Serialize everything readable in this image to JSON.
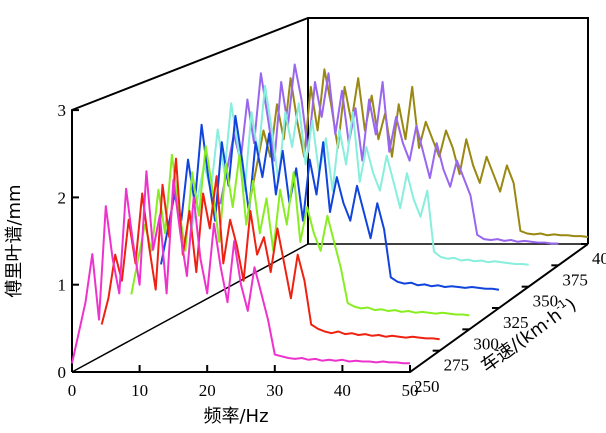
{
  "chart_data": {
    "type": "line",
    "chart_kind": "3d-waterfall",
    "xlabel": "频率/Hz",
    "ylabel": "傅里叶谱/mm",
    "zlabel": "车速/(km·h",
    "zlabel_sup": "-1",
    "zlabel_close": ")",
    "xlim": [
      0,
      50
    ],
    "ylim": [
      0,
      3
    ],
    "zlim": [
      250,
      400
    ],
    "x_ticks": [
      "0",
      "10",
      "20",
      "30",
      "40",
      "50"
    ],
    "y_ticks": [
      "0",
      "1",
      "2",
      "3"
    ],
    "z_ticks": [
      "250",
      "275",
      "300",
      "325",
      "350",
      "375",
      "400"
    ],
    "grid": false,
    "legend": "none",
    "series": [
      {
        "speed": 250,
        "color": "#ee33cc",
        "values": [
          0.1,
          0.45,
          0.8,
          1.35,
          0.6,
          1.9,
          1.3,
          0.9,
          2.1,
          1.5,
          1.0,
          2.3,
          1.4,
          1.8,
          0.9,
          2.2,
          1.6,
          1.1,
          2.0,
          1.3,
          0.9,
          1.7,
          1.2,
          0.8,
          1.5,
          1.0,
          0.7,
          1.2,
          0.9,
          0.6,
          0.2,
          0.18,
          0.16,
          0.15,
          0.16,
          0.14,
          0.15,
          0.13,
          0.14,
          0.13,
          0.14,
          0.12,
          0.13,
          0.12,
          0.12,
          0.11,
          0.12,
          0.11,
          0.11,
          0.1,
          0.1
        ]
      },
      {
        "speed": 275,
        "color": "#ee2211",
        "values": [
          0.3,
          0.6,
          1.1,
          0.8,
          1.5,
          1.0,
          1.8,
          1.2,
          0.7,
          1.9,
          1.3,
          2.2,
          1.1,
          1.6,
          0.9,
          1.8,
          1.4,
          2.0,
          1.0,
          1.5,
          1.2,
          0.8,
          1.6,
          1.1,
          1.3,
          0.9,
          1.4,
          1.0,
          0.6,
          1.1,
          0.8,
          0.3,
          0.25,
          0.22,
          0.2,
          0.22,
          0.19,
          0.2,
          0.18,
          0.19,
          0.17,
          0.18,
          0.16,
          0.17,
          0.16,
          0.15,
          0.16,
          0.15,
          0.14,
          0.14,
          0.13
        ]
      },
      {
        "speed": 300,
        "color": "#88ee22",
        "values": [
          0.4,
          0.8,
          1.2,
          0.9,
          1.6,
          1.1,
          2.0,
          1.4,
          0.9,
          1.8,
          1.3,
          2.1,
          1.6,
          1.0,
          1.9,
          1.4,
          2.0,
          1.2,
          1.7,
          1.1,
          1.5,
          0.9,
          1.6,
          1.2,
          1.8,
          1.0,
          1.4,
          1.1,
          0.9,
          1.3,
          1.0,
          0.7,
          0.3,
          0.26,
          0.24,
          0.25,
          0.22,
          0.23,
          0.21,
          0.22,
          0.2,
          0.21,
          0.19,
          0.2,
          0.19,
          0.18,
          0.19,
          0.18,
          0.17,
          0.17,
          0.16
        ]
      },
      {
        "speed": 325,
        "color": "#1144dd",
        "values": [
          0.5,
          0.9,
          1.3,
          1.0,
          1.7,
          1.2,
          2.1,
          1.5,
          1.0,
          1.9,
          1.4,
          2.2,
          1.7,
          1.1,
          1.9,
          1.5,
          2.0,
          1.3,
          1.8,
          1.2,
          1.6,
          1.0,
          1.7,
          1.3,
          1.9,
          1.1,
          1.5,
          1.2,
          1.0,
          1.4,
          1.1,
          0.8,
          1.2,
          0.9,
          0.35,
          0.3,
          0.28,
          0.29,
          0.26,
          0.27,
          0.25,
          0.26,
          0.24,
          0.25,
          0.24,
          0.23,
          0.24,
          0.23,
          0.22,
          0.22,
          0.21
        ]
      },
      {
        "speed": 350,
        "color": "#88eedd",
        "values": [
          0.6,
          1.0,
          1.4,
          1.1,
          1.8,
          1.3,
          2.1,
          1.6,
          1.1,
          2.0,
          1.5,
          2.3,
          1.8,
          1.2,
          2.0,
          1.6,
          2.1,
          1.4,
          1.9,
          1.3,
          1.7,
          1.1,
          1.8,
          1.4,
          2.0,
          1.2,
          1.6,
          1.3,
          1.1,
          1.5,
          1.2,
          0.9,
          1.3,
          1.0,
          0.8,
          1.1,
          0.4,
          0.34,
          0.32,
          0.33,
          0.3,
          0.31,
          0.29,
          0.3,
          0.28,
          0.29,
          0.28,
          0.27,
          0.26,
          0.26,
          0.25
        ]
      },
      {
        "speed": 375,
        "color": "#9966ee",
        "values": [
          0.7,
          1.1,
          1.5,
          1.2,
          1.9,
          1.4,
          2.2,
          1.7,
          1.2,
          2.1,
          1.6,
          2.3,
          1.9,
          1.3,
          2.1,
          1.7,
          2.2,
          1.5,
          2.0,
          1.4,
          1.8,
          1.2,
          1.9,
          1.5,
          2.1,
          1.3,
          1.7,
          1.4,
          1.2,
          1.6,
          1.3,
          1.0,
          1.4,
          1.1,
          0.9,
          1.2,
          1.0,
          0.8,
          0.35,
          0.3,
          0.29,
          0.3,
          0.28,
          0.29,
          0.27,
          0.28,
          0.27,
          0.26,
          0.26,
          0.25,
          0.25
        ]
      },
      {
        "speed": 400,
        "color": "#998811",
        "values": [
          0.5,
          0.9,
          1.3,
          1.0,
          1.6,
          1.2,
          1.9,
          1.4,
          1.0,
          1.8,
          1.3,
          2.0,
          1.6,
          1.1,
          1.8,
          1.4,
          1.9,
          1.3,
          1.7,
          1.2,
          1.5,
          1.0,
          1.6,
          1.2,
          1.8,
          1.1,
          1.4,
          1.2,
          1.0,
          1.3,
          1.1,
          0.8,
          1.2,
          0.9,
          0.7,
          1.0,
          0.8,
          0.6,
          0.9,
          0.7,
          0.15,
          0.12,
          0.11,
          0.12,
          0.1,
          0.11,
          0.1,
          0.1,
          0.09,
          0.09,
          0.08
        ]
      }
    ]
  }
}
